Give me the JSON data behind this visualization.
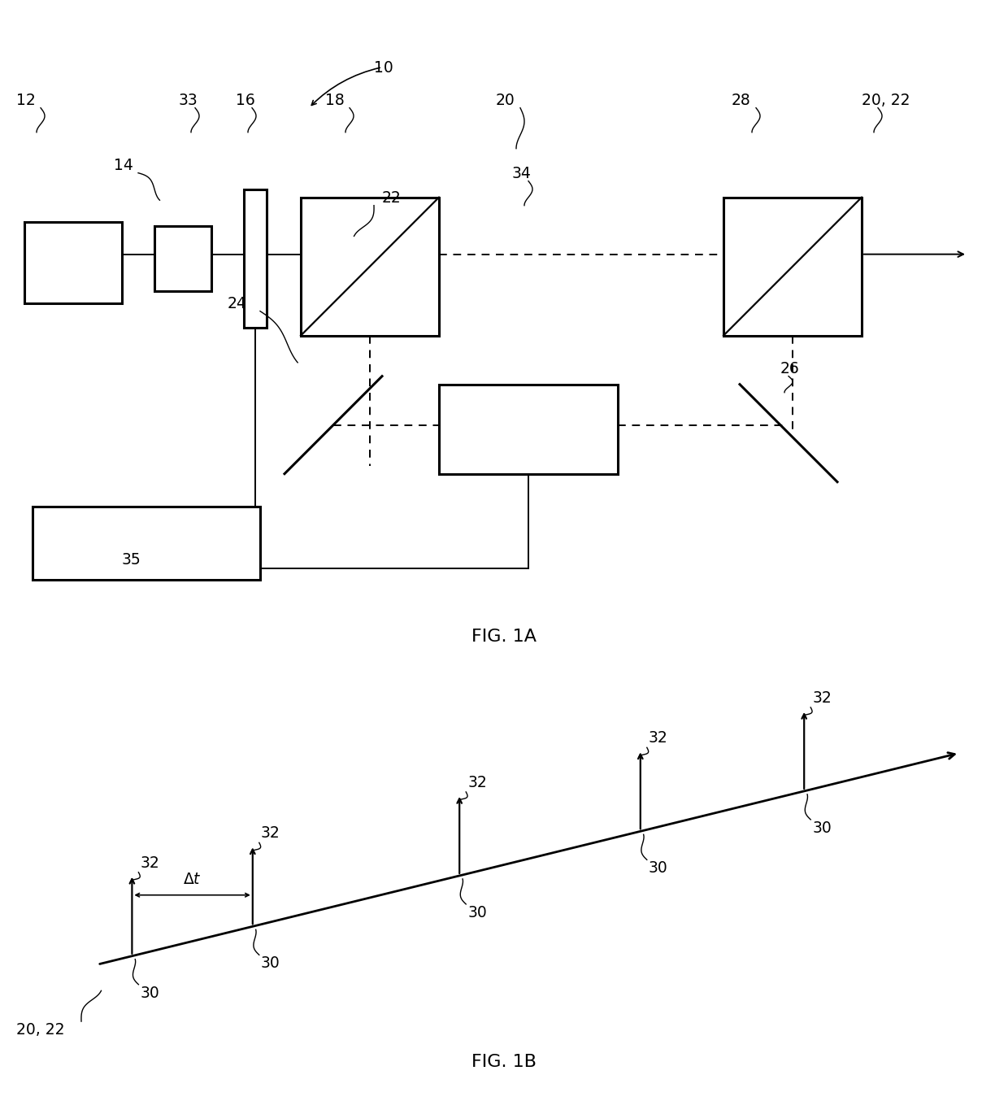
{
  "bg_color": "#ffffff",
  "fig_width": 12.4,
  "fig_height": 13.54,
  "fig1a_label": "FIG. 1A",
  "fig1b_label": "FIG. 1B"
}
